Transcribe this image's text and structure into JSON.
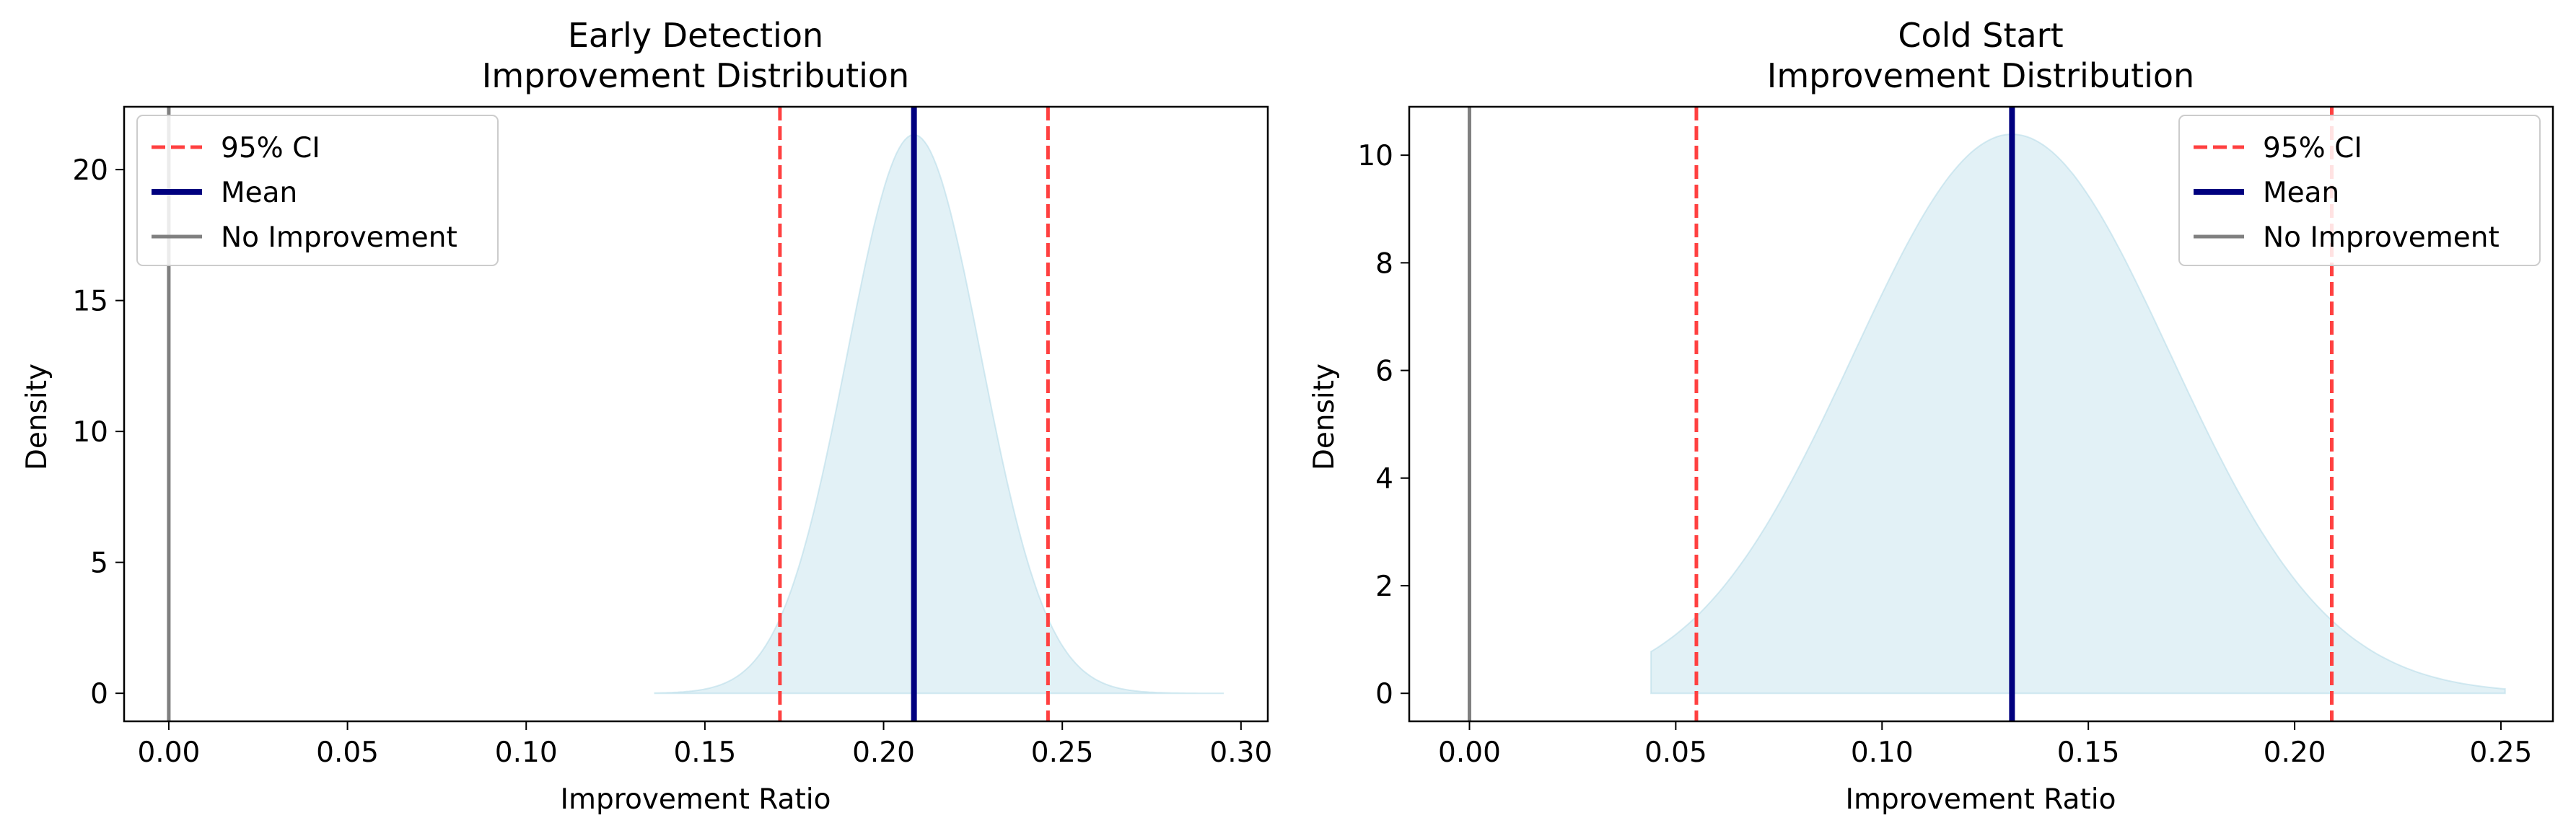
{
  "chart_data": [
    {
      "type": "area",
      "title_line1": "Early Detection",
      "title_line2": "Improvement Distribution",
      "xlabel": "Improvement Ratio",
      "ylabel": "Density",
      "xlim": [
        -0.0125,
        0.3075
      ],
      "ylim": [
        -1.07,
        22.4
      ],
      "xticks": [
        0.0,
        0.05,
        0.1,
        0.15,
        0.2,
        0.25,
        0.3
      ],
      "xtick_labels": [
        "0.00",
        "0.05",
        "0.10",
        "0.15",
        "0.20",
        "0.25",
        "0.30"
      ],
      "yticks": [
        0,
        5,
        10,
        15,
        20
      ],
      "ytick_labels": [
        "0",
        "5",
        "10",
        "15",
        "20"
      ],
      "distribution": {
        "kind": "normal",
        "mean": 0.2085,
        "sd": 0.0187,
        "x_min": 0.136,
        "x_max": 0.295,
        "color": "#add8e6"
      },
      "lines": {
        "mean": 0.2085,
        "ci_low": 0.171,
        "ci_high": 0.246,
        "no_improvement": 0.0
      },
      "legend_position": "upper-left",
      "legend": [
        {
          "label": "95% CI",
          "style": "dashed",
          "color": "#ff4040"
        },
        {
          "label": "Mean",
          "style": "solid-thick",
          "color": "#00007f"
        },
        {
          "label": "No Improvement",
          "style": "solid",
          "color": "#808080"
        }
      ]
    },
    {
      "type": "area",
      "title_line1": "Cold Start",
      "title_line2": "Improvement Distribution",
      "xlabel": "Improvement Ratio",
      "ylabel": "Density",
      "xlim": [
        -0.0146,
        0.2626
      ],
      "ylim": [
        -0.52,
        10.9
      ],
      "xticks": [
        0.0,
        0.05,
        0.1,
        0.15,
        0.2,
        0.25
      ],
      "xtick_labels": [
        "0.00",
        "0.05",
        "0.10",
        "0.15",
        "0.20",
        "0.25"
      ],
      "yticks": [
        0,
        2,
        4,
        6,
        8,
        10
      ],
      "ytick_labels": [
        "0",
        "2",
        "4",
        "6",
        "8",
        "10"
      ],
      "distribution": {
        "kind": "normal",
        "mean": 0.1315,
        "sd": 0.0384,
        "x_min": 0.044,
        "x_max": 0.251,
        "color": "#add8e6"
      },
      "lines": {
        "mean": 0.1315,
        "ci_low": 0.055,
        "ci_high": 0.209,
        "no_improvement": 0.0
      },
      "legend_position": "upper-right",
      "legend": [
        {
          "label": "95% CI",
          "style": "dashed",
          "color": "#ff4040"
        },
        {
          "label": "Mean",
          "style": "solid-thick",
          "color": "#00007f"
        },
        {
          "label": "No Improvement",
          "style": "solid",
          "color": "#808080"
        }
      ]
    }
  ]
}
